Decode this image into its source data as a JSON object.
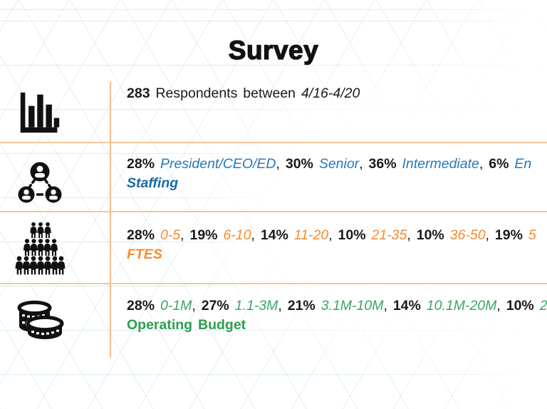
{
  "title": "Survey",
  "colors": {
    "ink": "#1a1a1a",
    "blue": "#2878b8",
    "blue_label": "#1a6ca6",
    "orange": "#f68b2e",
    "green": "#3aa563",
    "green_label": "#2d9e50",
    "separator": "#f6c79d",
    "separator_strong": "#f2ae7d"
  },
  "rows": [
    {
      "id": "respondents",
      "icon": "bar-chart-icon",
      "line1": [
        {
          "t": "283 ",
          "k": "b"
        },
        {
          "t": "Respondents between ",
          "k": "r"
        },
        {
          "t": "4/16-4/20",
          "k": "i"
        }
      ],
      "label": ""
    },
    {
      "id": "staffing",
      "icon": "org-chart-icon",
      "line1": [
        {
          "t": "28% ",
          "k": "b"
        },
        {
          "t": "President/CEO/ED",
          "k": "c"
        },
        {
          "t": ", ",
          "k": "r"
        },
        {
          "t": "30% ",
          "k": "b"
        },
        {
          "t": "Senior",
          "k": "c"
        },
        {
          "t": ", ",
          "k": "r"
        },
        {
          "t": "36% ",
          "k": "b"
        },
        {
          "t": "Intermediate",
          "k": "c"
        },
        {
          "t": ", ",
          "k": "r"
        },
        {
          "t": "6% ",
          "k": "b"
        },
        {
          "t": "En",
          "k": "c"
        }
      ],
      "label": "Staffing"
    },
    {
      "id": "ftes",
      "icon": "people-group-icon",
      "line1": [
        {
          "t": "28% ",
          "k": "b"
        },
        {
          "t": "0-5",
          "k": "c"
        },
        {
          "t": ", ",
          "k": "r"
        },
        {
          "t": "19% ",
          "k": "b"
        },
        {
          "t": "6-10",
          "k": "c"
        },
        {
          "t": ", ",
          "k": "r"
        },
        {
          "t": "14% ",
          "k": "b"
        },
        {
          "t": "11-20",
          "k": "c"
        },
        {
          "t": ", ",
          "k": "r"
        },
        {
          "t": "10% ",
          "k": "b"
        },
        {
          "t": "21-35",
          "k": "c"
        },
        {
          "t": ", ",
          "k": "r"
        },
        {
          "t": "10% ",
          "k": "b"
        },
        {
          "t": "36-50",
          "k": "c"
        },
        {
          "t": ", ",
          "k": "r"
        },
        {
          "t": "19% ",
          "k": "b"
        },
        {
          "t": "5",
          "k": "c"
        }
      ],
      "label": "FTES"
    },
    {
      "id": "operating-budget",
      "icon": "coins-icon",
      "line1": [
        {
          "t": "28% ",
          "k": "b"
        },
        {
          "t": "0-1M",
          "k": "c"
        },
        {
          "t": ", ",
          "k": "r"
        },
        {
          "t": "27% ",
          "k": "b"
        },
        {
          "t": "1.1-3M",
          "k": "c"
        },
        {
          "t": ", ",
          "k": "r"
        },
        {
          "t": "21% ",
          "k": "b"
        },
        {
          "t": "3.1M-10M",
          "k": "c"
        },
        {
          "t": ", ",
          "k": "r"
        },
        {
          "t": "14% ",
          "k": "b"
        },
        {
          "t": "10.1M-20M",
          "k": "c"
        },
        {
          "t": ", ",
          "k": "r"
        },
        {
          "t": "10% ",
          "k": "b"
        },
        {
          "t": "2",
          "k": "c"
        }
      ],
      "label": "Operating Budget"
    }
  ]
}
